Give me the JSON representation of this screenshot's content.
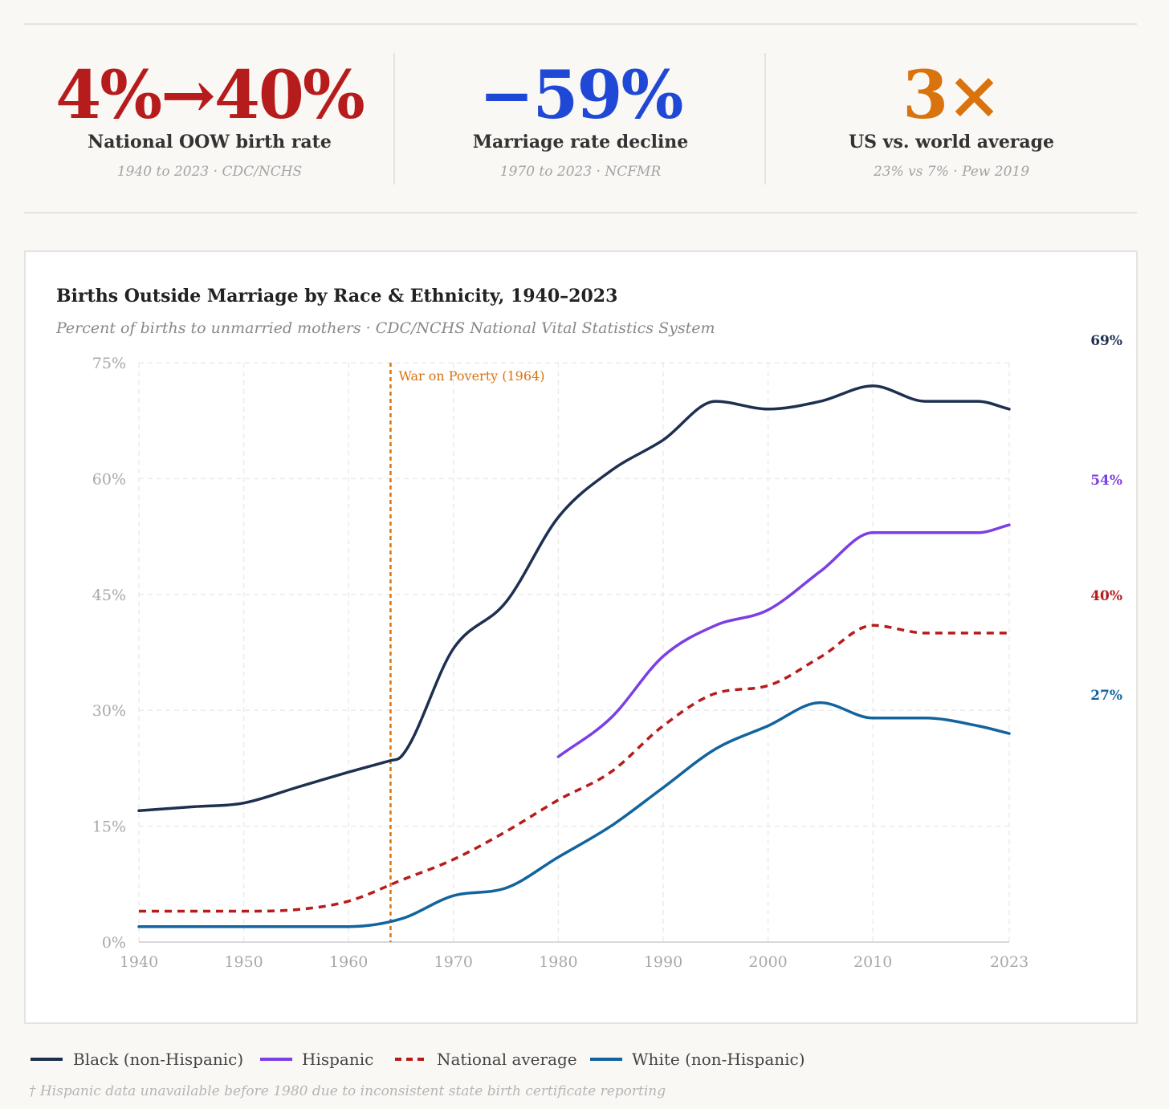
{
  "stats": [
    {
      "value": "4%→40%",
      "label": "National OOW birth rate",
      "source": "1940 to 2023 · CDC/NCHS",
      "color": "#b71c1c"
    },
    {
      "value": "−59%",
      "label": "Marriage rate decline",
      "source": "1970 to 2023 · NCFMR",
      "color": "#1f48d6"
    },
    {
      "value": "3×",
      "label": "US vs. world average",
      "source": "23% vs 7% · Pew 2019",
      "color": "#d9730d"
    }
  ],
  "chart_data": {
    "type": "line",
    "title": "Births Outside Marriage by Race & Ethnicity, 1940–2023",
    "subtitle": "Percent of births to unmarried mothers · CDC/NCHS National Vital Statistics System",
    "xlim": [
      1940,
      2023
    ],
    "ylim": [
      0,
      75
    ],
    "x_ticks": [
      1940,
      1950,
      1960,
      1970,
      1980,
      1990,
      2000,
      2010,
      2023
    ],
    "y_ticks": [
      0,
      15,
      30,
      45,
      60,
      75
    ],
    "y_tick_labels": [
      "0%",
      "15%",
      "30%",
      "45%",
      "60%",
      "75%"
    ],
    "grid": true,
    "annotation": {
      "x": 1964,
      "label": "War on Poverty (1964)",
      "color": "#d9730d"
    },
    "series": [
      {
        "name": "Black (non-Hispanic)",
        "color": "#1e3050",
        "dashed": false,
        "end_label": "69%",
        "points": [
          [
            1940,
            17
          ],
          [
            1945,
            17.5
          ],
          [
            1950,
            18
          ],
          [
            1955,
            20
          ],
          [
            1960,
            22
          ],
          [
            1964,
            23.5
          ],
          [
            1965,
            24
          ],
          [
            1970,
            38
          ],
          [
            1975,
            44
          ],
          [
            1980,
            55
          ],
          [
            1985,
            61
          ],
          [
            1990,
            65
          ],
          [
            1995,
            70
          ],
          [
            2000,
            69
          ],
          [
            2005,
            70
          ],
          [
            2010,
            72
          ],
          [
            2015,
            70
          ],
          [
            2020,
            70
          ],
          [
            2023,
            69
          ]
        ]
      },
      {
        "name": "Hispanic",
        "color": "#7b3fe4",
        "dashed": false,
        "end_label": "54%",
        "points": [
          [
            1980,
            24
          ],
          [
            1985,
            29
          ],
          [
            1990,
            37
          ],
          [
            1995,
            41
          ],
          [
            2000,
            43
          ],
          [
            2005,
            48
          ],
          [
            2010,
            53
          ],
          [
            2015,
            53
          ],
          [
            2020,
            53
          ],
          [
            2023,
            54
          ]
        ]
      },
      {
        "name": "National average",
        "color": "#b71c1c",
        "dashed": true,
        "end_label": "40%",
        "points": [
          [
            1940,
            4
          ],
          [
            1950,
            4
          ],
          [
            1955,
            4.2
          ],
          [
            1960,
            5.3
          ],
          [
            1965,
            8
          ],
          [
            1970,
            10.7
          ],
          [
            1975,
            14.3
          ],
          [
            1980,
            18.4
          ],
          [
            1985,
            22
          ],
          [
            1990,
            28
          ],
          [
            1995,
            32.2
          ],
          [
            2000,
            33.2
          ],
          [
            2005,
            36.9
          ],
          [
            2010,
            41
          ],
          [
            2015,
            40
          ],
          [
            2020,
            40
          ],
          [
            2023,
            40
          ]
        ]
      },
      {
        "name": "White (non-Hispanic)",
        "color": "#11649e",
        "dashed": false,
        "end_label": "27%",
        "points": [
          [
            1940,
            2
          ],
          [
            1950,
            2
          ],
          [
            1960,
            2
          ],
          [
            1965,
            3
          ],
          [
            1970,
            6
          ],
          [
            1975,
            7
          ],
          [
            1980,
            11
          ],
          [
            1985,
            15
          ],
          [
            1990,
            20
          ],
          [
            1995,
            25
          ],
          [
            2000,
            28
          ],
          [
            2005,
            31
          ],
          [
            2010,
            29
          ],
          [
            2015,
            29
          ],
          [
            2020,
            28
          ],
          [
            2023,
            27
          ]
        ]
      }
    ]
  },
  "footnote": "† Hispanic data unavailable before 1980 due to inconsistent state birth certificate reporting"
}
